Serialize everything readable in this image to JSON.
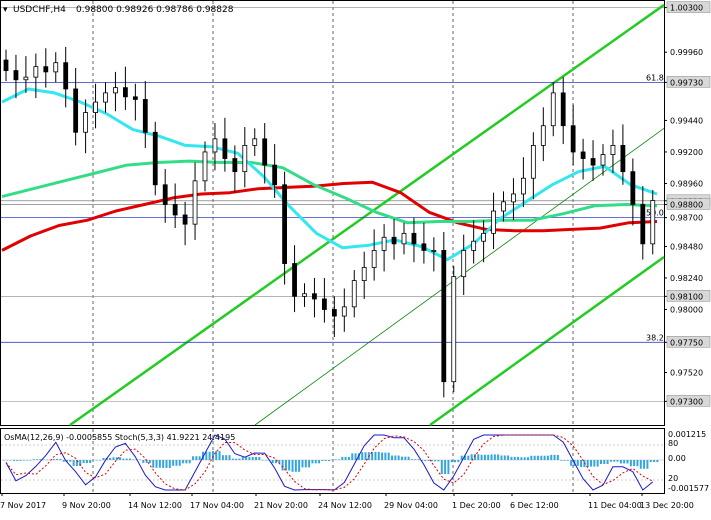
{
  "header": {
    "symbol": "USDCHF,H4",
    "ohlc": "0.98800 0.98926 0.98786 0.98828"
  },
  "price_axis": {
    "labels": [
      "1.00300",
      "0.99960",
      "0.99730",
      "0.99440",
      "0.99200",
      "0.98960",
      "0.98828",
      "0.98800",
      "0.98700",
      "0.98480",
      "0.98240",
      "0.98100",
      "0.98000",
      "0.97750",
      "0.97520",
      "0.97300"
    ],
    "highlighted": [
      "1.00300",
      "0.99730",
      "0.98828",
      "0.98800",
      "0.98100",
      "0.97750",
      "0.97300"
    ]
  },
  "fib_levels": [
    {
      "label": "61.8",
      "value": 0.9973
    },
    {
      "label": "50.0",
      "value": 0.987
    },
    {
      "label": "38.2",
      "value": 0.9775
    }
  ],
  "time_axis": {
    "labels": [
      "7 Nov 2017",
      "9 Nov 20:00",
      "14 Nov 12:00",
      "17 Nov 04:00",
      "21 Nov 20:00",
      "24 Nov 12:00",
      "29 Nov 04:00",
      "1 Dec 20:00",
      "6 Dec 12:00",
      "11 Dec 04:00",
      "13 Dec 20:00"
    ]
  },
  "oscillator": {
    "title": "OsMA(12,26,9) -0.0005855  Stoch(5,3,3) 41.9221 24.4195",
    "axis_labels": [
      "0.001215",
      "80",
      "0.00",
      "20",
      "-0.001577"
    ]
  },
  "colors": {
    "background": "#ffffff",
    "candles": "#000000",
    "ma_red": "#e00000",
    "ma_green": "#33dd88",
    "ma_cyan": "#33e6f0",
    "channel": "#22cc22",
    "fib_line": "#3344cc",
    "osma_bars": "#33a6e0",
    "stoch_main": "#1a1acc",
    "stoch_signal": "#e00000",
    "grid": "#000000"
  },
  "chart_data": {
    "type": "candlestick",
    "x": [
      0,
      10,
      20,
      30,
      40,
      50,
      60,
      70,
      80,
      90,
      100,
      110,
      120,
      130,
      140,
      150,
      160,
      170,
      180,
      190,
      200,
      210,
      220,
      230,
      240,
      250,
      260,
      270,
      280,
      290,
      300,
      310,
      320,
      330,
      340,
      350,
      360,
      370,
      380,
      390,
      400,
      410,
      420,
      430,
      440,
      450,
      460,
      470,
      480,
      490,
      500,
      510,
      520,
      530,
      540,
      550,
      560,
      570,
      580,
      590,
      600,
      610,
      620,
      630,
      640,
      650
    ],
    "close": [
      0.9982,
      0.9975,
      0.9977,
      0.9985,
      0.9981,
      0.9988,
      0.9968,
      0.9935,
      0.995,
      0.9958,
      0.9965,
      0.9969,
      0.9962,
      0.996,
      0.9935,
      0.9895,
      0.988,
      0.9872,
      0.9865,
      0.9898,
      0.992,
      0.993,
      0.9915,
      0.9905,
      0.9925,
      0.993,
      0.991,
      0.9895,
      0.9835,
      0.981,
      0.9812,
      0.9808,
      0.98,
      0.9795,
      0.9802,
      0.9822,
      0.9832,
      0.9845,
      0.9855,
      0.985,
      0.9858,
      0.985,
      0.9845,
      0.9845,
      0.9745,
      0.9825,
      0.9845,
      0.9852,
      0.9858,
      0.9875,
      0.9882,
      0.9888,
      0.99,
      0.9925,
      0.994,
      0.9965,
      0.994,
      0.992,
      0.9915,
      0.991,
      0.9918,
      0.9925,
      0.9905,
      0.988,
      0.985,
      0.9883
    ],
    "moving_averages": [
      {
        "color": "red",
        "values": [
          0.9845,
          0.9856,
          0.9864,
          0.9868,
          0.9875,
          0.988,
          0.9885,
          0.9888,
          0.9889,
          0.9892,
          0.9893,
          0.9894,
          0.9896,
          0.9897,
          0.9889,
          0.9874,
          0.9866,
          0.9861,
          0.986,
          0.986,
          0.9861,
          0.9862,
          0.9866,
          0.9867
        ]
      },
      {
        "color": "green",
        "values": [
          0.9886,
          0.9892,
          0.9898,
          0.9904,
          0.991,
          0.9912,
          0.9913,
          0.9912,
          0.9912,
          0.9908,
          0.9895,
          0.9885,
          0.9874,
          0.9866,
          0.9867,
          0.9867,
          0.9868,
          0.9868,
          0.9873,
          0.9879,
          0.988,
          0.9879
        ]
      },
      {
        "color": "cyan",
        "values": [
          0.9958,
          0.9968,
          0.9965,
          0.9958,
          0.9949,
          0.9937,
          0.9932,
          0.9925,
          0.9924,
          0.9919,
          0.9901,
          0.9878,
          0.9858,
          0.9847,
          0.9849,
          0.9853,
          0.9848,
          0.9838,
          0.985,
          0.9869,
          0.9882,
          0.9895,
          0.9905,
          0.9909,
          0.9895,
          0.9888
        ]
      }
    ],
    "ylim": [
      0.9712,
      1.0035
    ],
    "title": "USDCHF,H4"
  }
}
